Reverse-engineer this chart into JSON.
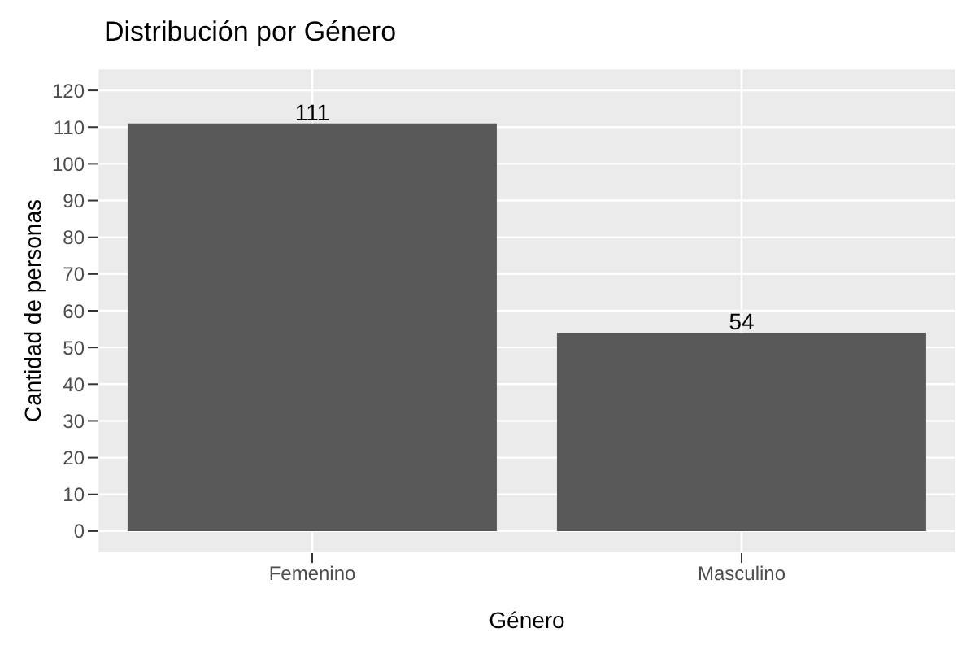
{
  "chart_data": {
    "type": "bar",
    "title": "Distribución por Género",
    "xlabel": "Género",
    "ylabel": "Cantidad de personas",
    "categories": [
      "Femenino",
      "Masculino"
    ],
    "values": [
      111,
      54
    ],
    "color": "#595959",
    "ylim": [
      -6,
      126
    ],
    "yticks": [
      0,
      10,
      20,
      30,
      40,
      50,
      60,
      70,
      80,
      90,
      100,
      110,
      120
    ],
    "grid": true,
    "data_labels": true
  }
}
